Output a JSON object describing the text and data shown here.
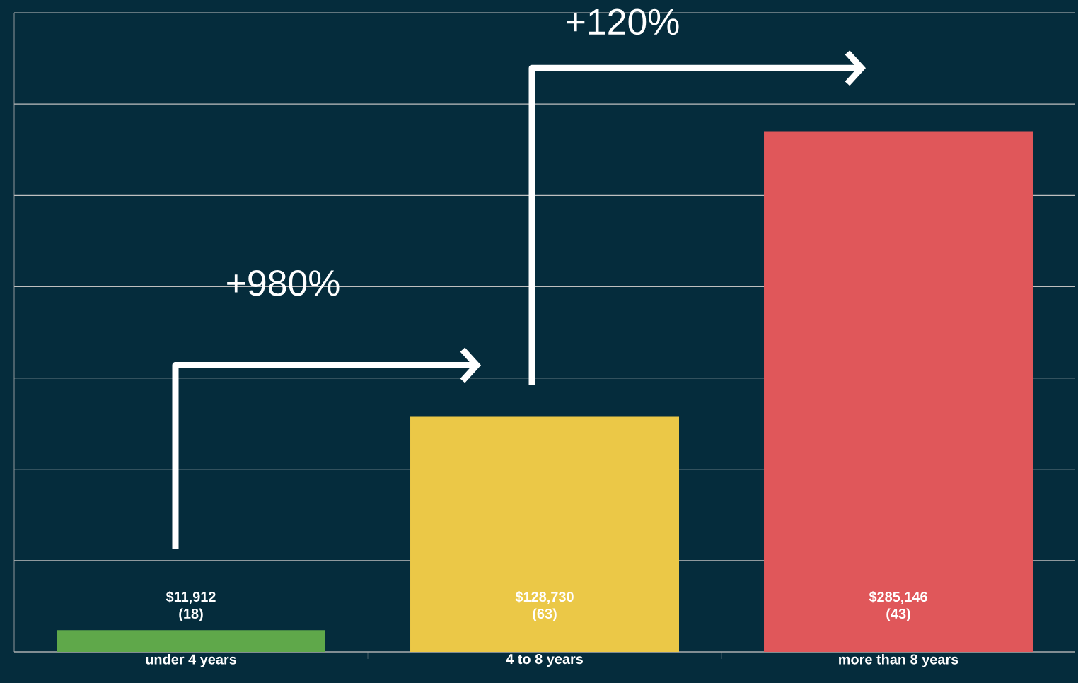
{
  "chart_data": {
    "type": "bar",
    "categories": [
      "under 4 years",
      "4 to 8 years",
      "more than 8 years"
    ],
    "values": [
      11912,
      128730,
      285146
    ],
    "colors": [
      "#5fa84a",
      "#ebc847",
      "#e0575a"
    ],
    "value_labels": [
      "$11,912 (18)",
      "$128,730 (63)",
      "$285,146 (43)"
    ],
    "ylim": [
      0,
      350000
    ],
    "yticks": [
      {
        "value": 0,
        "label": null
      },
      {
        "value": 50000,
        "label": null
      },
      {
        "value": 100000,
        "label": null
      },
      {
        "value": 150000,
        "label": null
      },
      {
        "value": 200000,
        "label": null
      },
      {
        "value": 250000,
        "label": null
      },
      {
        "value": 300000,
        "label": null
      },
      {
        "value": 350000,
        "label": null
      }
    ],
    "tick_labels": "x",
    "grid": "y",
    "annotations": [
      "+980%",
      "+120%"
    ]
  }
}
